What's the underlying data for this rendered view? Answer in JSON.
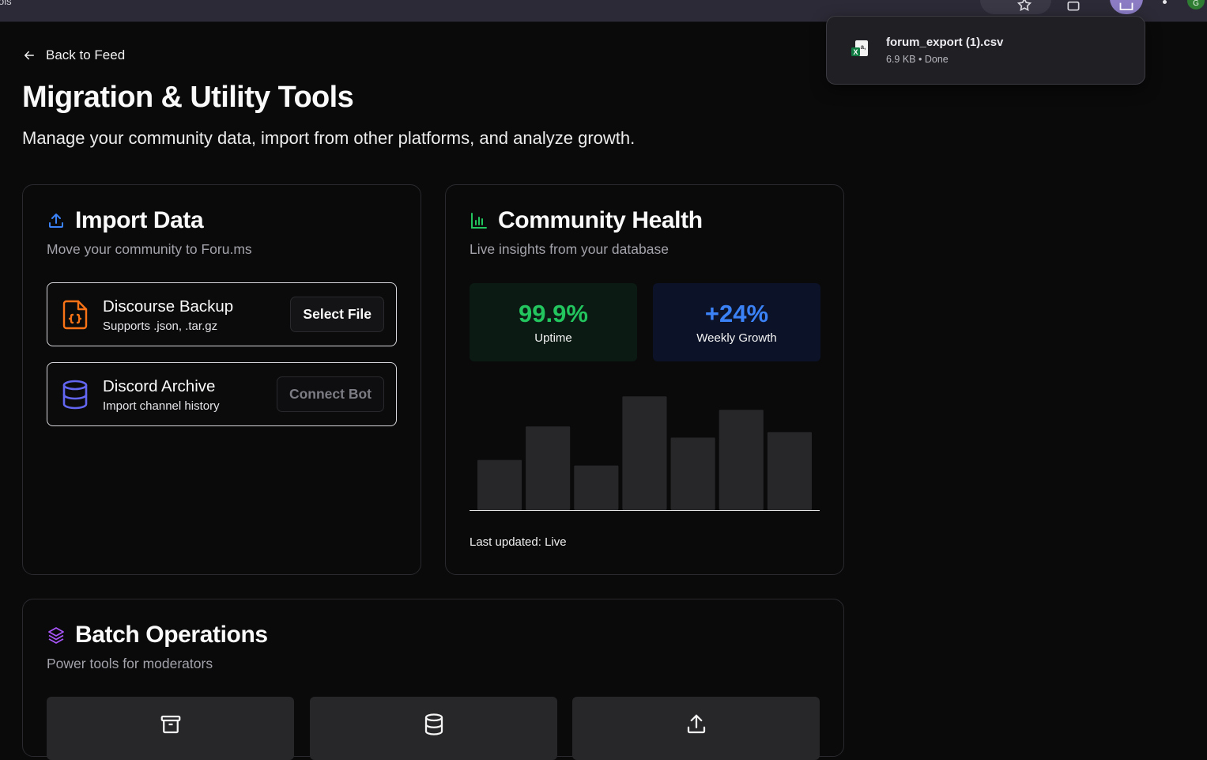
{
  "browser": {
    "tab_fragment": "ols",
    "avatar_initial": "G"
  },
  "download": {
    "file_name": "forum_export (1).csv",
    "file_meta": "6.9 KB • Done"
  },
  "page": {
    "back_label": "Back to Feed",
    "title": "Migration & Utility Tools",
    "subtitle": "Manage your community data, import from other platforms, and analyze growth."
  },
  "import": {
    "title": "Import Data",
    "description": "Move your community to Foru.ms",
    "sources": [
      {
        "title": "Discourse Backup",
        "subtitle": "Supports .json, .tar.gz",
        "button": "Select File",
        "icon": "file-code-icon",
        "icon_color": "#f97316"
      },
      {
        "title": "Discord Archive",
        "subtitle": "Import channel history",
        "button": "Connect Bot",
        "icon": "database-icon",
        "icon_color": "#6366f1"
      }
    ]
  },
  "health": {
    "title": "Community Health",
    "description": "Live insights from your database",
    "uptime_value": "99.9%",
    "uptime_label": "Uptime",
    "growth_value": "+24%",
    "growth_label": "Weekly Growth",
    "last_updated": "Last updated: Live"
  },
  "chart_data": {
    "type": "bar",
    "values": [
      45,
      75,
      40,
      102,
      65,
      90,
      70
    ],
    "ylim": [
      0,
      110
    ],
    "grid": false,
    "bar_color": "#27272a"
  },
  "batch": {
    "title": "Batch Operations",
    "description": "Power tools for moderators",
    "tiles": [
      {
        "icon": "archive-icon"
      },
      {
        "icon": "database-icon"
      },
      {
        "icon": "upload-icon"
      }
    ]
  },
  "colors": {
    "background": "#0a0a0b",
    "card_border": "#2a2a2e",
    "accent_green": "#22c55e",
    "accent_blue": "#3b82f6",
    "import_icon": "#3b82f6",
    "health_icon": "#22c55e",
    "batch_icon": "#a855f7"
  }
}
